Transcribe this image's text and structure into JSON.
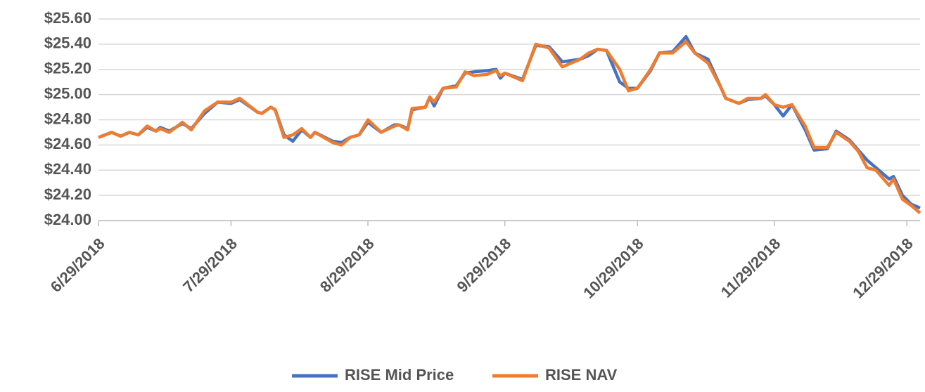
{
  "chart_data": {
    "type": "line",
    "x": [
      "6/29/2018",
      "7/2/2018",
      "7/4/2018",
      "7/6/2018",
      "7/8/2018",
      "7/10/2018",
      "7/12/2018",
      "7/13/2018",
      "7/15/2018",
      "7/18/2018",
      "7/20/2018",
      "7/23/2018",
      "7/26/2018",
      "7/29/2018",
      "7/31/2018",
      "8/4/2018",
      "8/5/2018",
      "8/7/2018",
      "8/8/2018",
      "8/10/2018",
      "8/12/2018",
      "8/14/2018",
      "8/16/2018",
      "8/17/2018",
      "8/21/2018",
      "8/23/2018",
      "8/25/2018",
      "8/27/2018",
      "8/29/2018",
      "9/1/2018",
      "9/4/2018",
      "9/5/2018",
      "9/7/2018",
      "9/8/2018",
      "9/11/2018",
      "9/12/2018",
      "9/13/2018",
      "9/15/2018",
      "9/18/2018",
      "9/20/2018",
      "9/22/2018",
      "9/25/2018",
      "9/27/2018",
      "9/28/2018",
      "9/29/2018",
      "10/3/2018",
      "10/6/2018",
      "10/9/2018",
      "10/12/2018",
      "10/16/2018",
      "10/18/2018",
      "10/20/2018",
      "10/22/2018",
      "10/25/2018",
      "10/27/2018",
      "10/29/2018",
      "11/1/2018",
      "11/3/2018",
      "11/6/2018",
      "11/9/2018",
      "11/11/2018",
      "11/14/2018",
      "11/17/2018",
      "11/18/2018",
      "11/21/2018",
      "11/23/2018",
      "11/26/2018",
      "11/27/2018",
      "11/29/2018",
      "12/1/2018",
      "12/3/2018",
      "12/6/2018",
      "12/8/2018",
      "12/11/2018",
      "12/13/2018",
      "12/16/2018",
      "12/18/2018",
      "12/20/2018",
      "12/22/2018",
      "12/25/2018",
      "12/26/2018",
      "12/28/2018",
      "12/30/2018",
      "1/1/2019"
    ],
    "series": [
      {
        "name": "RISE Mid Price",
        "color": "#4472c4",
        "values": [
          24.66,
          24.7,
          24.67,
          24.7,
          24.68,
          24.74,
          24.71,
          24.74,
          24.71,
          24.77,
          24.73,
          24.85,
          24.94,
          24.93,
          24.96,
          24.86,
          24.85,
          24.9,
          24.88,
          24.68,
          24.63,
          24.72,
          24.66,
          24.7,
          24.63,
          24.62,
          24.66,
          24.68,
          24.78,
          24.7,
          24.76,
          24.76,
          24.73,
          24.88,
          24.9,
          24.98,
          24.91,
          25.05,
          25.07,
          25.17,
          25.18,
          25.19,
          25.2,
          25.13,
          25.17,
          25.12,
          25.39,
          25.38,
          25.26,
          25.28,
          25.31,
          25.36,
          25.35,
          25.1,
          25.05,
          25.05,
          25.19,
          25.33,
          25.34,
          25.46,
          25.33,
          25.28,
          25.05,
          24.97,
          24.93,
          24.96,
          24.97,
          24.99,
          24.92,
          24.83,
          24.92,
          24.72,
          24.56,
          24.57,
          24.71,
          24.64,
          24.56,
          24.48,
          24.42,
          24.33,
          24.35,
          24.2,
          24.13,
          24.1
        ]
      },
      {
        "name": "RISE NAV",
        "color": "#ed7d31",
        "values": [
          24.66,
          24.7,
          24.67,
          24.7,
          24.68,
          24.75,
          24.71,
          24.73,
          24.7,
          24.78,
          24.72,
          24.87,
          24.94,
          24.94,
          24.97,
          24.86,
          24.85,
          24.9,
          24.88,
          24.66,
          24.68,
          24.73,
          24.66,
          24.7,
          24.62,
          24.6,
          24.66,
          24.68,
          24.8,
          24.7,
          24.75,
          24.76,
          24.72,
          24.89,
          24.9,
          24.98,
          24.94,
          25.05,
          25.06,
          25.18,
          25.15,
          25.16,
          25.19,
          25.15,
          25.17,
          25.11,
          25.4,
          25.37,
          25.22,
          25.28,
          25.33,
          25.36,
          25.35,
          25.2,
          25.03,
          25.05,
          25.2,
          25.33,
          25.33,
          25.42,
          25.33,
          25.25,
          25.05,
          24.97,
          24.93,
          24.97,
          24.97,
          25.0,
          24.92,
          24.9,
          24.92,
          24.75,
          24.58,
          24.58,
          24.7,
          24.63,
          24.55,
          24.42,
          24.4,
          24.28,
          24.33,
          24.17,
          24.12,
          24.06
        ]
      }
    ],
    "xlim": [
      "6/29/2018",
      "1/1/2019"
    ],
    "xticks": [
      "6/29/2018",
      "7/29/2018",
      "8/29/2018",
      "9/29/2018",
      "10/29/2018",
      "11/29/2018",
      "12/29/2018"
    ],
    "ylim": [
      24,
      25.6
    ],
    "yticks": [
      {
        "value": 24,
        "label": "$24.00"
      },
      {
        "value": 24.2,
        "label": "$24.20"
      },
      {
        "value": 24.4,
        "label": "$24.40"
      },
      {
        "value": 24.6,
        "label": "$24.60"
      },
      {
        "value": 24.8,
        "label": "$24.80"
      },
      {
        "value": 25,
        "label": "$25.00"
      },
      {
        "value": 25.2,
        "label": "$25.20"
      },
      {
        "value": 25.4,
        "label": "$25.40"
      },
      {
        "value": 25.6,
        "label": "$25.60"
      }
    ],
    "grid": true,
    "legend": "bottom"
  }
}
